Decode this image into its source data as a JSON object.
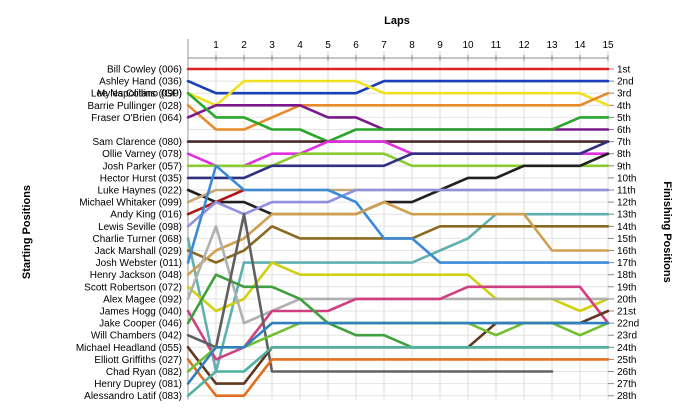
{
  "chart_data": {
    "type": "line",
    "title": "",
    "top_axis_label": "Laps",
    "left_axis_label": "Starting Positions",
    "right_axis_label": "Finishing Positions",
    "laps": [
      1,
      2,
      3,
      4,
      5,
      6,
      7,
      8,
      9,
      10,
      11,
      12,
      13,
      14,
      15
    ],
    "position_range": [
      1,
      28
    ],
    "grid": true,
    "finishing_labels": [
      "1st",
      "2nd",
      "3rd",
      "4th",
      "5th",
      "6th",
      "7th",
      "8th",
      "9th",
      "10th",
      "11th",
      "12th",
      "13th",
      "14th",
      "15th",
      "16th",
      "17th",
      "18th",
      "19th",
      "20th",
      "21st",
      "22nd",
      "23rd",
      "24th",
      "25th",
      "26th",
      "27th",
      "28th"
    ],
    "series": [
      {
        "name": "Bill Cowley (006)",
        "color": "#dd2222",
        "positions": [
          1,
          1,
          1,
          1,
          1,
          1,
          1,
          1,
          1,
          1,
          1,
          1,
          1,
          1,
          1,
          1
        ]
      },
      {
        "name": "Ashley Hand (036)",
        "color": "#1a3fb8",
        "positions": [
          2,
          3,
          3,
          3,
          3,
          3,
          3,
          2,
          2,
          2,
          2,
          2,
          2,
          2,
          2,
          2
        ]
      },
      {
        "name": "Myles Collins (090)",
        "color": "#f0e020",
        "positions": [
          3,
          4,
          2,
          2,
          2,
          2,
          2,
          3,
          3,
          3,
          3,
          3,
          3,
          3,
          3,
          4
        ]
      },
      {
        "name": "Barrie Pullinger (028)",
        "color": "#e88a2a",
        "positions": [
          4,
          6,
          6,
          5,
          4,
          4,
          4,
          4,
          4,
          4,
          4,
          4,
          4,
          4,
          4,
          3
        ]
      },
      {
        "name": "Fraser O'Brien (064)",
        "color": "#7a1a8a",
        "positions": [
          5,
          4,
          4,
          4,
          4,
          5,
          5,
          6,
          6,
          6,
          6,
          6,
          6,
          6,
          6,
          6
        ]
      },
      {
        "name": "Lee Napolitano (GP)",
        "color": "#2aa62a",
        "positions": [
          3,
          5,
          5,
          6,
          6,
          7,
          6,
          6,
          6,
          6,
          6,
          6,
          6,
          6,
          5,
          5
        ]
      },
      {
        "name": "Sam Clarence (080)",
        "color": "#4a2a2a",
        "positions": [
          7,
          7,
          7,
          7,
          7,
          7,
          7,
          7,
          7,
          7,
          7,
          7,
          7,
          7,
          7,
          7
        ]
      },
      {
        "name": "Ollie Varney (078)",
        "color": "#e030e0",
        "positions": [
          8,
          9,
          9,
          8,
          8,
          7,
          7,
          7,
          8,
          8,
          8,
          8,
          8,
          8,
          8,
          8
        ]
      },
      {
        "name": "Josh Parker (057)",
        "color": "#88cc30",
        "positions": [
          9,
          9,
          9,
          9,
          8,
          8,
          8,
          8,
          9,
          9,
          9,
          9,
          9,
          9,
          9,
          9
        ]
      },
      {
        "name": "Hector Hurst (035)",
        "color": "#303080",
        "positions": [
          10,
          10,
          10,
          9,
          9,
          9,
          9,
          9,
          8,
          8,
          8,
          8,
          8,
          8,
          8,
          7
        ]
      },
      {
        "name": "Luke Haynes (022)",
        "color": "#202020",
        "positions": [
          11,
          12,
          12,
          13,
          13,
          13,
          13,
          12,
          12,
          11,
          10,
          10,
          9,
          9,
          9,
          8
        ]
      },
      {
        "name": "Michael Whitaker (099)",
        "color": "#c8a878",
        "positions": [
          12,
          11,
          11,
          11,
          11,
          11,
          11,
          11,
          11,
          11,
          11,
          11,
          11,
          11,
          11,
          11
        ]
      },
      {
        "name": "Andy King (016)",
        "color": "#b01818",
        "positions": [
          13,
          12,
          11
        ]
      },
      {
        "name": "Lewis Seville (098)",
        "color": "#9090dd",
        "positions": [
          14,
          12,
          13,
          12,
          12,
          12,
          11,
          11,
          11,
          11,
          11,
          11,
          11,
          11,
          11,
          11
        ]
      },
      {
        "name": "Charlie Turner (068)",
        "color": "#60b0b0",
        "positions": [
          15,
          26,
          17,
          17,
          17,
          17,
          17,
          17,
          17,
          16,
          15,
          13,
          13,
          13,
          13,
          13
        ]
      },
      {
        "name": "Jack Marshall (029)",
        "color": "#8a6a20",
        "positions": [
          16,
          17,
          16,
          14,
          15,
          15,
          15,
          15,
          15,
          14,
          14,
          14,
          14,
          14,
          14,
          14
        ]
      },
      {
        "name": "Josh Webster (011)",
        "color": "#3a8ad8",
        "positions": [
          17,
          9,
          11,
          11,
          11,
          11,
          12,
          15,
          15,
          17,
          17,
          17,
          17,
          17,
          17,
          17
        ]
      },
      {
        "name": "Henry Jackson (048)",
        "color": "#d0a050",
        "positions": [
          18,
          16,
          15,
          13,
          13,
          13,
          13,
          12,
          13,
          13,
          13,
          13,
          13,
          16,
          16,
          16
        ]
      },
      {
        "name": "Scott Robertson (072)",
        "color": "#d0d010",
        "positions": [
          19,
          21,
          20,
          17,
          18,
          18,
          18,
          18,
          18,
          18,
          18,
          20,
          20,
          20,
          21,
          20
        ]
      },
      {
        "name": "Alex Magee (092)",
        "color": "#b0b0b0",
        "positions": [
          20,
          14,
          22,
          21,
          20,
          20,
          20,
          20,
          20,
          20,
          20,
          20,
          20,
          20,
          20,
          20
        ]
      },
      {
        "name": "James Hogg (040)",
        "color": "#d04080",
        "positions": [
          21,
          25,
          24,
          21,
          21,
          21,
          20,
          20,
          20,
          20,
          19,
          19,
          19,
          19,
          19,
          22
        ]
      },
      {
        "name": "Jake Cooper (046)",
        "color": "#40a040",
        "positions": [
          22,
          18,
          19,
          19,
          20,
          22,
          23,
          23,
          24,
          24,
          24,
          24,
          24,
          24,
          24,
          24
        ]
      },
      {
        "name": "Will Chambers (042)",
        "color": "#606060",
        "positions": [
          23,
          24,
          13,
          26,
          26,
          26,
          26,
          26,
          26,
          26,
          26,
          26,
          26,
          26
        ]
      },
      {
        "name": "Michael Headland (055)",
        "color": "#603820",
        "positions": [
          24,
          27,
          27,
          24,
          24,
          24,
          24,
          24,
          24,
          24,
          24,
          22,
          22,
          22,
          22,
          21
        ]
      },
      {
        "name": "Elliott Griffiths (027)",
        "color": "#e07020",
        "positions": [
          25,
          28,
          28,
          25,
          25,
          25,
          25,
          25,
          25,
          25,
          25,
          25,
          25,
          25,
          25,
          25
        ]
      },
      {
        "name": "Chad Ryan (082)",
        "color": "#70c030",
        "positions": [
          26,
          24,
          24,
          23,
          22,
          22,
          22,
          22,
          22,
          22,
          22,
          23,
          22,
          22,
          23,
          22
        ]
      },
      {
        "name": "Henry Duprey (081)",
        "color": "#3080c0",
        "positions": [
          27,
          24,
          24,
          22,
          22,
          22,
          22,
          22,
          22,
          22,
          22,
          22,
          22,
          22,
          22,
          22
        ]
      },
      {
        "name": "Alessandro Latif (083)",
        "color": "#50b0a0",
        "positions": [
          28,
          26,
          26,
          24,
          24,
          24,
          24,
          24,
          24,
          24,
          24,
          24,
          24,
          24,
          24,
          24
        ]
      }
    ]
  }
}
